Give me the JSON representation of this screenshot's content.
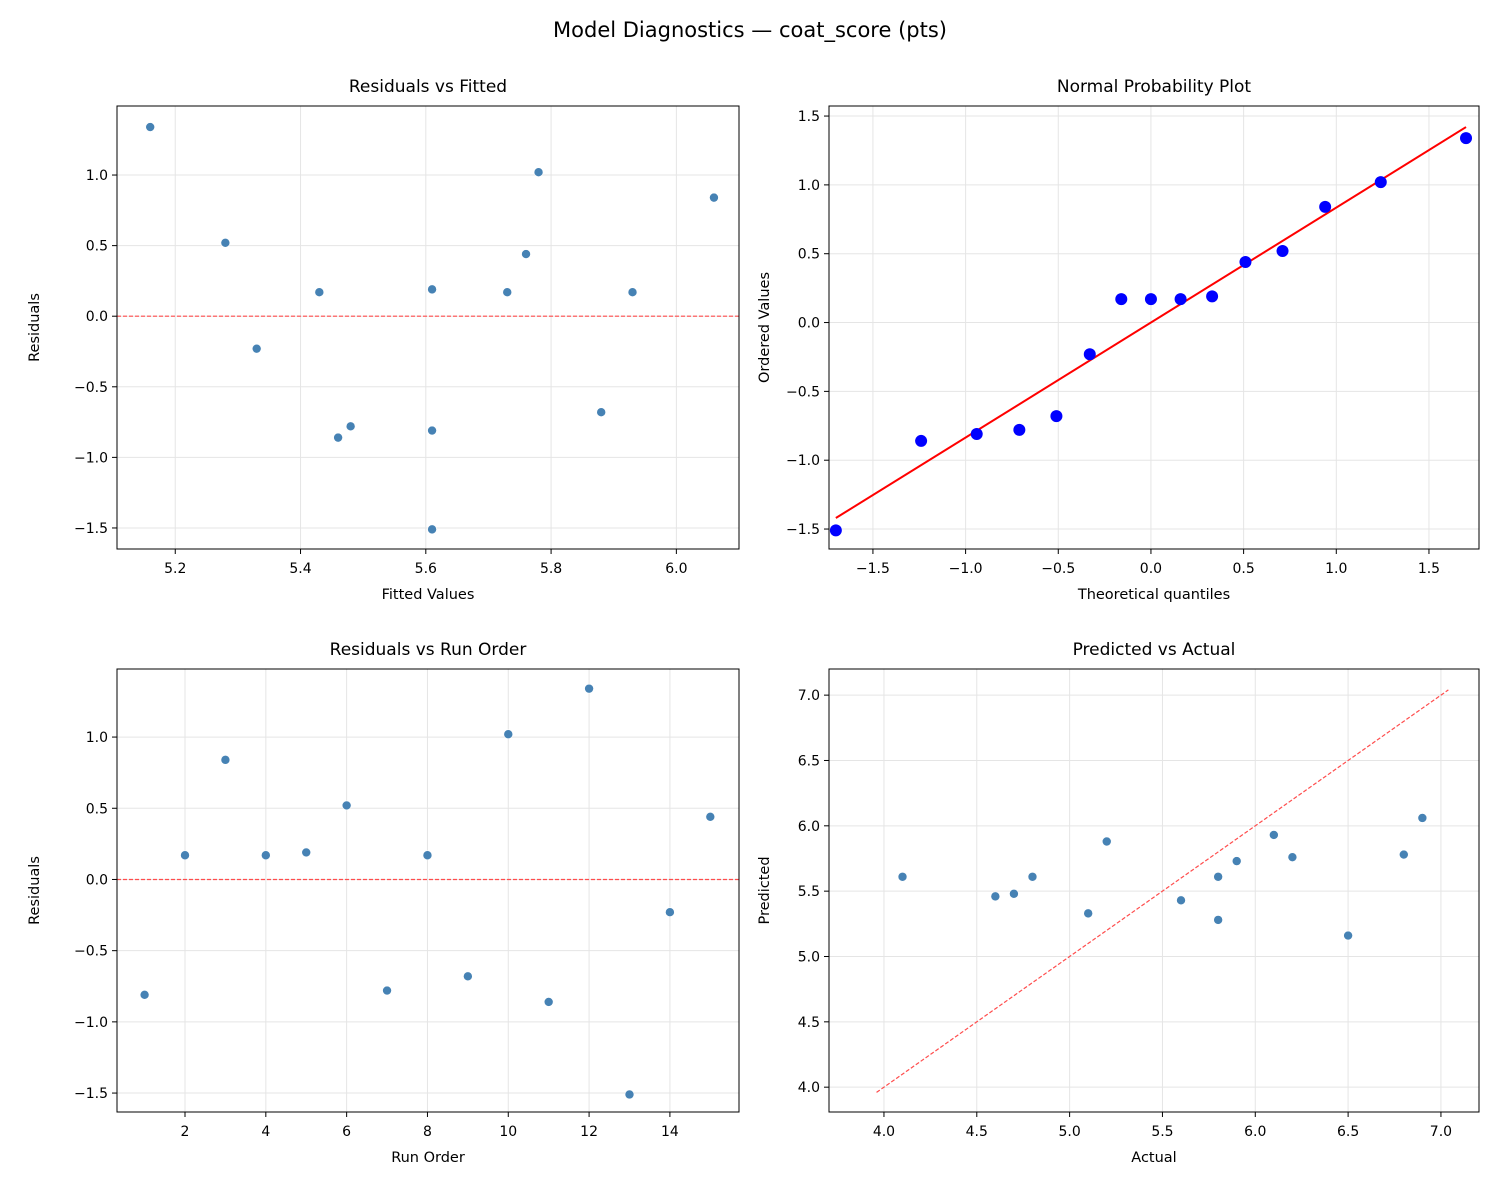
{
  "figure": {
    "title": "Model Diagnostics — coat_score (pts)"
  },
  "colors": {
    "point": "#4682b4",
    "qq_point": "#0000ff",
    "qq_line": "#ff0000",
    "ref_line": "#ff4d4d",
    "grid": "#e5e5e5"
  },
  "chart_data": [
    {
      "type": "scatter",
      "title": "Residuals vs Fitted",
      "xlabel": "Fitted Values",
      "ylabel": "Residuals",
      "xlim": [
        5.107,
        6.1
      ],
      "ylim": [
        -1.649,
        1.489
      ],
      "xticks": [
        5.2,
        5.4,
        5.6,
        5.8,
        6.0
      ],
      "xtick_labels": [
        "5.2",
        "5.4",
        "5.6",
        "5.8",
        "6.0"
      ],
      "yticks": [
        -1.5,
        -1.0,
        -0.5,
        0.0,
        0.5,
        1.0
      ],
      "ytick_labels": [
        "−1.5",
        "−1.0",
        "−0.5",
        "0.0",
        "0.5",
        "1.0"
      ],
      "grid": true,
      "reference_line": {
        "kind": "horizontal",
        "y": 0,
        "style": "dashed"
      },
      "x": [
        5.61,
        5.43,
        6.06,
        5.73,
        5.61,
        5.28,
        5.48,
        5.93,
        5.88,
        5.78,
        5.46,
        5.16,
        5.61,
        5.33,
        5.76
      ],
      "y": [
        -0.81,
        0.17,
        0.84,
        0.17,
        0.19,
        0.52,
        -0.78,
        0.17,
        -0.68,
        1.02,
        -0.86,
        1.34,
        -1.51,
        -0.23,
        0.44
      ]
    },
    {
      "type": "scatter",
      "title": "Normal Probability Plot",
      "xlabel": "Theoretical quantiles",
      "ylabel": "Ordered Values",
      "xlim": [
        -1.737,
        1.77
      ],
      "ylim": [
        -1.645,
        1.573
      ],
      "xticks": [
        -1.5,
        -1.0,
        -0.5,
        0.0,
        0.5,
        1.0,
        1.5
      ],
      "xtick_labels": [
        "−1.5",
        "−1.0",
        "−0.5",
        "0.0",
        "0.5",
        "1.0",
        "1.5"
      ],
      "yticks": [
        -1.5,
        -1.0,
        -0.5,
        0.0,
        0.5,
        1.0,
        1.5
      ],
      "ytick_labels": [
        "−1.5",
        "−1.0",
        "−0.5",
        "0.0",
        "0.5",
        "1.0",
        "1.5"
      ],
      "grid": true,
      "reference_line": {
        "kind": "fit",
        "x": [
          -1.7,
          1.7
        ],
        "y": [
          -1.42,
          1.42
        ],
        "style": "solid"
      },
      "x": [
        -1.7,
        -1.24,
        -0.94,
        -0.71,
        -0.51,
        -0.33,
        -0.16,
        0.0,
        0.16,
        0.33,
        0.51,
        0.71,
        0.94,
        1.24,
        1.7
      ],
      "y": [
        -1.51,
        -0.86,
        -0.81,
        -0.78,
        -0.68,
        -0.23,
        0.17,
        0.17,
        0.17,
        0.19,
        0.44,
        0.52,
        0.84,
        1.02,
        1.34
      ]
    },
    {
      "type": "scatter",
      "title": "Residuals vs Run Order",
      "xlabel": "Run Order",
      "ylabel": "Residuals",
      "xlim": [
        0.317,
        15.71
      ],
      "ylim": [
        -1.633,
        1.478
      ],
      "xticks": [
        2,
        4,
        6,
        8,
        10,
        12,
        14
      ],
      "xtick_labels": [
        "2",
        "4",
        "6",
        "8",
        "10",
        "12",
        "14"
      ],
      "yticks": [
        -1.5,
        -1.0,
        -0.5,
        0.0,
        0.5,
        1.0
      ],
      "ytick_labels": [
        "−1.5",
        "−1.0",
        "−0.5",
        "0.0",
        "0.5",
        "1.0"
      ],
      "grid": true,
      "reference_line": {
        "kind": "horizontal",
        "y": 0,
        "style": "dashed"
      },
      "x": [
        1,
        2,
        3,
        4,
        5,
        6,
        7,
        8,
        9,
        10,
        11,
        12,
        13,
        14,
        15
      ],
      "y": [
        -0.81,
        0.17,
        0.84,
        0.17,
        0.19,
        0.52,
        -0.78,
        0.17,
        -0.68,
        1.02,
        -0.86,
        1.34,
        -1.51,
        -0.23,
        0.44
      ]
    },
    {
      "type": "scatter",
      "title": "Predicted vs Actual",
      "xlabel": "Actual",
      "ylabel": "Predicted",
      "xlim": [
        3.704,
        7.205
      ],
      "ylim": [
        3.81,
        7.2
      ],
      "xticks": [
        4.0,
        4.5,
        5.0,
        5.5,
        6.0,
        6.5,
        7.0
      ],
      "xtick_labels": [
        "4.0",
        "4.5",
        "5.0",
        "5.5",
        "6.0",
        "6.5",
        "7.0"
      ],
      "yticks": [
        4.0,
        4.5,
        5.0,
        5.5,
        6.0,
        6.5,
        7.0
      ],
      "ytick_labels": [
        "4.0",
        "4.5",
        "5.0",
        "5.5",
        "6.0",
        "6.5",
        "7.0"
      ],
      "grid": true,
      "reference_line": {
        "kind": "diagonal",
        "x": [
          3.96,
          7.04
        ],
        "y": [
          3.96,
          7.04
        ],
        "style": "dashed"
      },
      "x": [
        4.8,
        5.6,
        6.9,
        5.9,
        5.8,
        5.8,
        4.7,
        6.1,
        5.2,
        6.8,
        4.6,
        6.5,
        4.1,
        5.1,
        6.2
      ],
      "y": [
        5.61,
        5.43,
        6.06,
        5.73,
        5.61,
        5.28,
        5.48,
        5.93,
        5.88,
        5.78,
        5.46,
        5.16,
        5.61,
        5.33,
        5.76
      ]
    }
  ]
}
